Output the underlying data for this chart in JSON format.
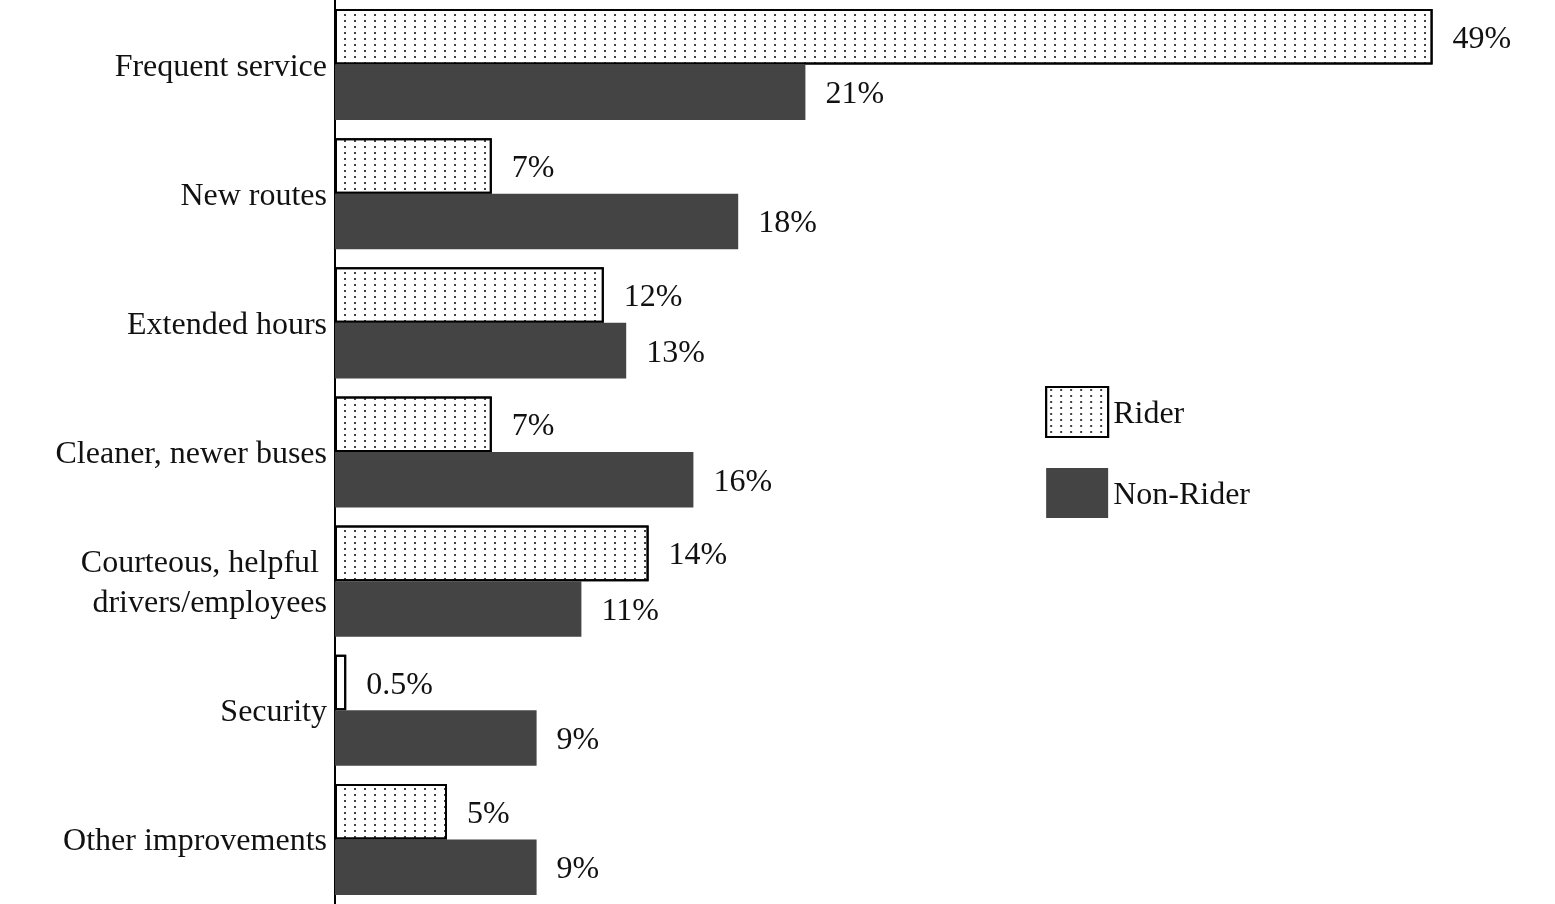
{
  "chart_data": {
    "type": "bar",
    "orientation": "horizontal",
    "categories": [
      "Frequent service",
      "New routes",
      "Extended hours",
      "Cleaner, newer buses",
      "Courteous, helpful drivers/employees",
      "Security",
      "Other improvements"
    ],
    "series": [
      {
        "name": "Rider",
        "color": "#ffffff",
        "values": [
          49,
          7,
          12,
          7,
          14,
          0.5,
          5
        ],
        "value_labels": [
          "49%",
          "7%",
          "12%",
          "7%",
          "14%",
          "0.5%",
          "5%"
        ]
      },
      {
        "name": "Non-Rider",
        "color": "#444444",
        "values": [
          21,
          18,
          13,
          16,
          11,
          9,
          9
        ],
        "value_labels": [
          "21%",
          "18%",
          "13%",
          "16%",
          "11%",
          "9%",
          "9%"
        ]
      }
    ],
    "legend": "right"
  }
}
